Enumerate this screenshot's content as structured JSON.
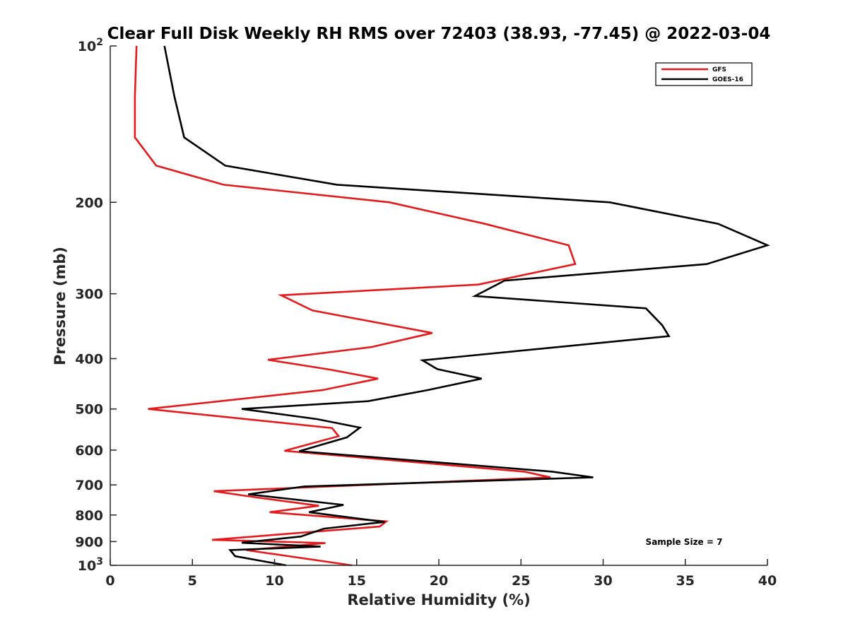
{
  "chart_data": {
    "type": "line",
    "title": "Clear Full Disk Weekly RH RMS over 72403 (38.93, -77.45) @ 2022-03-04",
    "xlabel": "Relative Humidity (%)",
    "ylabel": "Pressure (mb)",
    "xlim": [
      0,
      40
    ],
    "ylim": [
      100,
      1000
    ],
    "y_scale": "log",
    "y_reversed": true,
    "x_ticks": [
      0,
      5,
      10,
      15,
      20,
      25,
      30,
      35,
      40
    ],
    "y_ticks": [
      {
        "value": 100,
        "base": "10",
        "exp": "2"
      },
      {
        "value": 200,
        "label": "200"
      },
      {
        "value": 300,
        "label": "300"
      },
      {
        "value": 400,
        "label": "400"
      },
      {
        "value": 500,
        "label": "500"
      },
      {
        "value": 600,
        "label": "600"
      },
      {
        "value": 700,
        "label": "700"
      },
      {
        "value": 800,
        "label": "800"
      },
      {
        "value": 900,
        "label": "900"
      },
      {
        "value": 1000,
        "base": "10",
        "exp": "3"
      }
    ],
    "grid": false,
    "legend_position": "top-right",
    "series": [
      {
        "name": "GFS",
        "color": "#e41a1c",
        "x": [
          1.6,
          1.5,
          1.5,
          2.8,
          6.9,
          17.0,
          22.8,
          27.9,
          28.3,
          22.4,
          10.4,
          12.3,
          19.6,
          15.9,
          9.6,
          13.4,
          16.3,
          12.9,
          2.3,
          13.5,
          13.9,
          10.6,
          25.2,
          26.8,
          6.3,
          8.9,
          12.7,
          9.7,
          16.8,
          16.4,
          6.2,
          13.1,
          8.3,
          14.7
        ],
        "y": [
          100,
          125,
          150,
          170,
          185,
          200,
          220,
          242,
          263,
          288,
          302,
          323,
          357,
          380,
          402,
          420,
          437,
          460,
          500,
          544,
          564,
          602,
          660,
          677,
          720,
          740,
          768,
          790,
          823,
          842,
          893,
          906,
          935,
          1000
        ]
      },
      {
        "name": "GOES-16",
        "color": "#000000",
        "x": [
          3.3,
          3.9,
          4.5,
          7.0,
          13.8,
          30.4,
          37.0,
          40.0,
          36.3,
          24.0,
          22.2,
          32.6,
          33.6,
          34.0,
          19.0,
          19.9,
          22.6,
          19.3,
          15.7,
          8.0,
          12.6,
          15.2,
          14.4,
          11.5,
          26.9,
          29.4,
          11.8,
          8.4,
          14.2,
          12.1,
          16.7,
          13.0,
          11.6,
          8.0,
          12.8,
          7.3,
          7.6,
          10.7
        ],
        "y": [
          100,
          125,
          150,
          170,
          185,
          200,
          220,
          242,
          263,
          283,
          303,
          320,
          345,
          362,
          403,
          419,
          437,
          460,
          483,
          500,
          523,
          543,
          567,
          603,
          660,
          677,
          705,
          730,
          765,
          790,
          825,
          850,
          880,
          905,
          920,
          935,
          960,
          1000
        ]
      }
    ],
    "annotations": [
      "Sample Size = 7"
    ]
  }
}
